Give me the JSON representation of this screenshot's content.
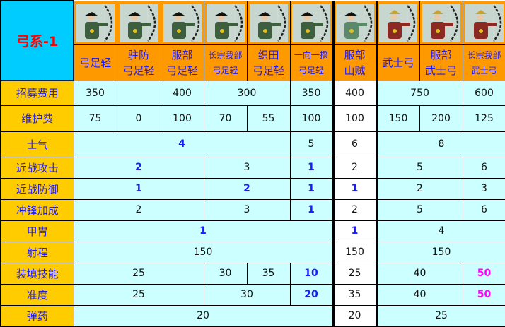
{
  "title": "弓系-1",
  "units": [
    {
      "line1": "弓足轻",
      "line2": "",
      "portrait": "ashigaru-archer",
      "small": false
    },
    {
      "line1": "驻防",
      "line2": "弓足轻",
      "portrait": "ashigaru-archer",
      "small": false
    },
    {
      "line1": "服部",
      "line2": "弓足轻",
      "portrait": "ashigaru-archer",
      "small": false
    },
    {
      "line1": "长宗我部",
      "line2": "弓足轻",
      "portrait": "ashigaru-archer",
      "small": true
    },
    {
      "line1": "织田",
      "line2": "弓足轻",
      "portrait": "ashigaru-archer",
      "small": false
    },
    {
      "line1": "一向一揆",
      "line2": "弓足轻",
      "portrait": "ashigaru-archer",
      "small": true
    },
    {
      "line1": "服部",
      "line2": "山贼",
      "portrait": "bandit-archer",
      "small": false
    },
    {
      "line1": "武士弓",
      "line2": "",
      "portrait": "samurai-archer",
      "small": false
    },
    {
      "line1": "服部",
      "line2": "武士弓",
      "portrait": "samurai-archer",
      "small": false
    },
    {
      "line1": "长宗我部",
      "line2": "武士弓",
      "portrait": "samurai-archer",
      "small": true
    }
  ],
  "colors": {
    "corner": "#00ccff",
    "title": "#ff0000",
    "header": "#ff9900",
    "label_bg": "#ffcc00",
    "label_text": "#1a1aff",
    "cell": "#ccffff",
    "highlight_blue": "#1a1aff",
    "highlight_magenta": "#ff00ff"
  },
  "rows": [
    {
      "label": "招募费用",
      "cells": [
        {
          "v": "350",
          "span": 1
        },
        {
          "v": "",
          "span": 1
        },
        {
          "v": "400",
          "span": 1
        },
        {
          "v": "300",
          "span": 2
        },
        {
          "v": "350",
          "span": 1
        },
        {
          "v": "400",
          "span": 1
        },
        {
          "v": "750",
          "span": 2
        },
        {
          "v": "600",
          "span": 1
        }
      ]
    },
    {
      "label": "维护费",
      "cells": [
        {
          "v": "75",
          "span": 1
        },
        {
          "v": "0",
          "span": 1
        },
        {
          "v": "100",
          "span": 1
        },
        {
          "v": "70",
          "span": 1
        },
        {
          "v": "55",
          "span": 1
        },
        {
          "v": "100",
          "span": 1
        },
        {
          "v": "100",
          "span": 1
        },
        {
          "v": "150",
          "span": 1
        },
        {
          "v": "200",
          "span": 1
        },
        {
          "v": "125",
          "span": 1
        }
      ]
    },
    {
      "label": "士气",
      "cells": [
        {
          "v": "4",
          "span": 5,
          "s": "b"
        },
        {
          "v": "5",
          "span": 1
        },
        {
          "v": "6",
          "span": 1
        },
        {
          "v": "8",
          "span": 3
        }
      ]
    },
    {
      "label": "近战攻击",
      "cells": [
        {
          "v": "2",
          "span": 3,
          "s": "b"
        },
        {
          "v": "3",
          "span": 2
        },
        {
          "v": "1",
          "span": 1,
          "s": "b"
        },
        {
          "v": "2",
          "span": 1
        },
        {
          "v": "5",
          "span": 2
        },
        {
          "v": "6",
          "span": 1
        }
      ]
    },
    {
      "label": "近战防御",
      "cells": [
        {
          "v": "1",
          "span": 3,
          "s": "b"
        },
        {
          "v": "2",
          "span": 2,
          "s": "b"
        },
        {
          "v": "1",
          "span": 1,
          "s": "b"
        },
        {
          "v": "1",
          "span": 1,
          "s": "b"
        },
        {
          "v": "2",
          "span": 2
        },
        {
          "v": "3",
          "span": 1
        }
      ]
    },
    {
      "label": "冲锋加成",
      "cells": [
        {
          "v": "2",
          "span": 3
        },
        {
          "v": "3",
          "span": 2
        },
        {
          "v": "1",
          "span": 1,
          "s": "b"
        },
        {
          "v": "2",
          "span": 1
        },
        {
          "v": "5",
          "span": 2
        },
        {
          "v": "6",
          "span": 1
        }
      ]
    },
    {
      "label": "甲胄",
      "cells": [
        {
          "v": "1",
          "span": 6,
          "s": "b"
        },
        {
          "v": "1",
          "span": 1,
          "s": "b"
        },
        {
          "v": "4",
          "span": 3
        }
      ]
    },
    {
      "label": "射程",
      "cells": [
        {
          "v": "150",
          "span": 6
        },
        {
          "v": "150",
          "span": 1
        },
        {
          "v": "150",
          "span": 3
        }
      ]
    },
    {
      "label": "装填技能",
      "cells": [
        {
          "v": "25",
          "span": 3
        },
        {
          "v": "30",
          "span": 1
        },
        {
          "v": "35",
          "span": 1
        },
        {
          "v": "10",
          "span": 1,
          "s": "b"
        },
        {
          "v": "25",
          "span": 1
        },
        {
          "v": "40",
          "span": 2
        },
        {
          "v": "50",
          "span": 1,
          "s": "m"
        }
      ]
    },
    {
      "label": "准度",
      "cells": [
        {
          "v": "25",
          "span": 3
        },
        {
          "v": "30",
          "span": 2
        },
        {
          "v": "20",
          "span": 1,
          "s": "b"
        },
        {
          "v": "35",
          "span": 1
        },
        {
          "v": "40",
          "span": 2
        },
        {
          "v": "50",
          "span": 1,
          "s": "m"
        }
      ]
    },
    {
      "label": "弹药",
      "cells": [
        {
          "v": "20",
          "span": 6
        },
        {
          "v": "20",
          "span": 1
        },
        {
          "v": "25",
          "span": 3
        }
      ]
    }
  ]
}
